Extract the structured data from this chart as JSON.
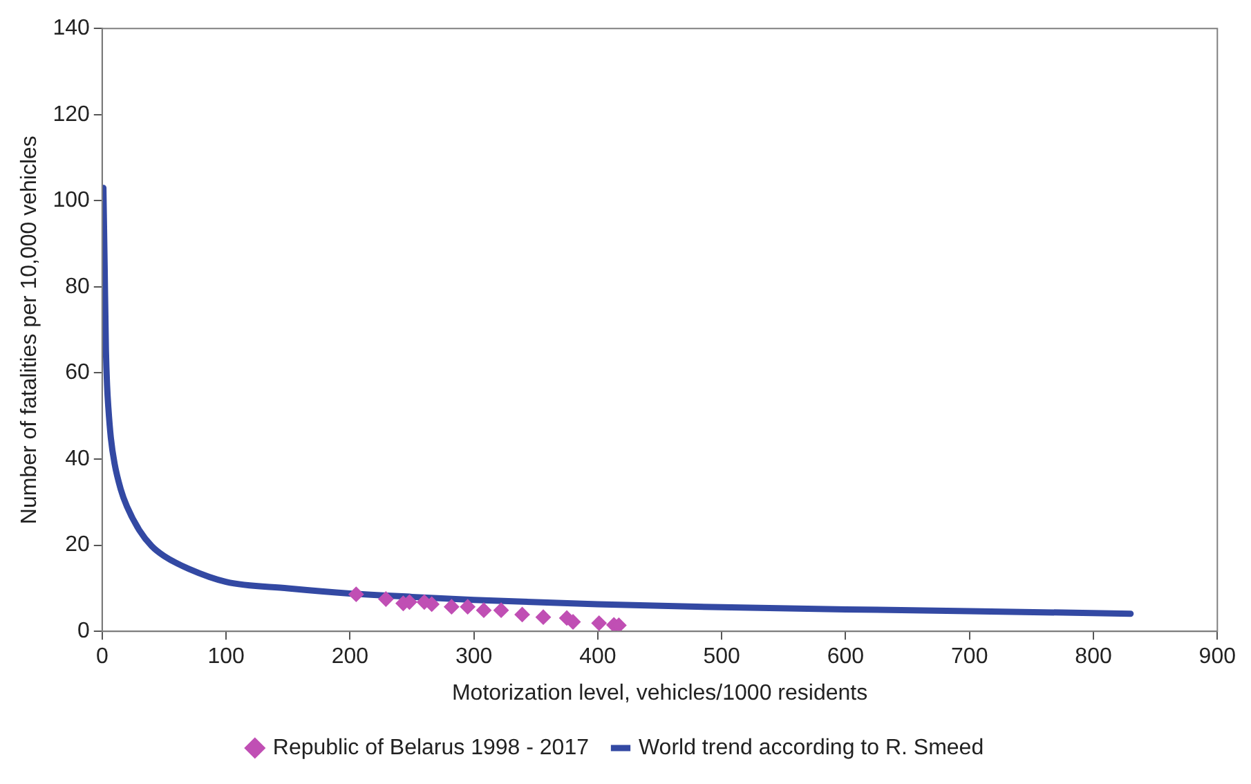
{
  "chart_data": {
    "type": "scatter",
    "xlabel": "Motorization level, vehicles/1000 residents",
    "ylabel": "Number of fatalities per 10,000 vehicles",
    "xlim": [
      0,
      900
    ],
    "xticks": [
      0,
      100,
      200,
      300,
      400,
      500,
      600,
      700,
      800,
      900
    ],
    "ylim": [
      0,
      140
    ],
    "yticks": [
      0,
      20,
      40,
      60,
      80,
      100,
      120,
      140
    ],
    "grid": false,
    "legend": "bottom",
    "series": [
      {
        "name": "Republic of Belarus 1998 - 2017",
        "marker": "diamond",
        "color": "#c04fb4",
        "x": [
          205,
          229,
          243,
          248,
          260,
          266,
          282,
          295,
          308,
          322,
          339,
          356,
          375,
          380,
          401,
          413,
          417
        ],
        "values": [
          8.6,
          7.5,
          6.5,
          6.8,
          6.8,
          6.3,
          5.7,
          5.7,
          4.9,
          4.9,
          3.9,
          3.3,
          3.1,
          2.2,
          1.9,
          1.5,
          1.4
        ]
      },
      {
        "name": "World trend according to R. Smeed",
        "type": "line",
        "marker": "none",
        "color": "#3349a3",
        "x": [
          1,
          2,
          3,
          4,
          5,
          7,
          10,
          15,
          20,
          30,
          40,
          50,
          70,
          100,
          150,
          200,
          250,
          300,
          400,
          500,
          600,
          700,
          830
        ],
        "values": [
          103,
          85,
          66,
          57,
          52,
          45,
          39,
          33,
          29,
          23.5,
          19.8,
          17.5,
          14.5,
          11.5,
          10,
          8.8,
          8,
          7.3,
          6.3,
          5.6,
          5.1,
          4.7,
          4.1
        ]
      }
    ]
  }
}
